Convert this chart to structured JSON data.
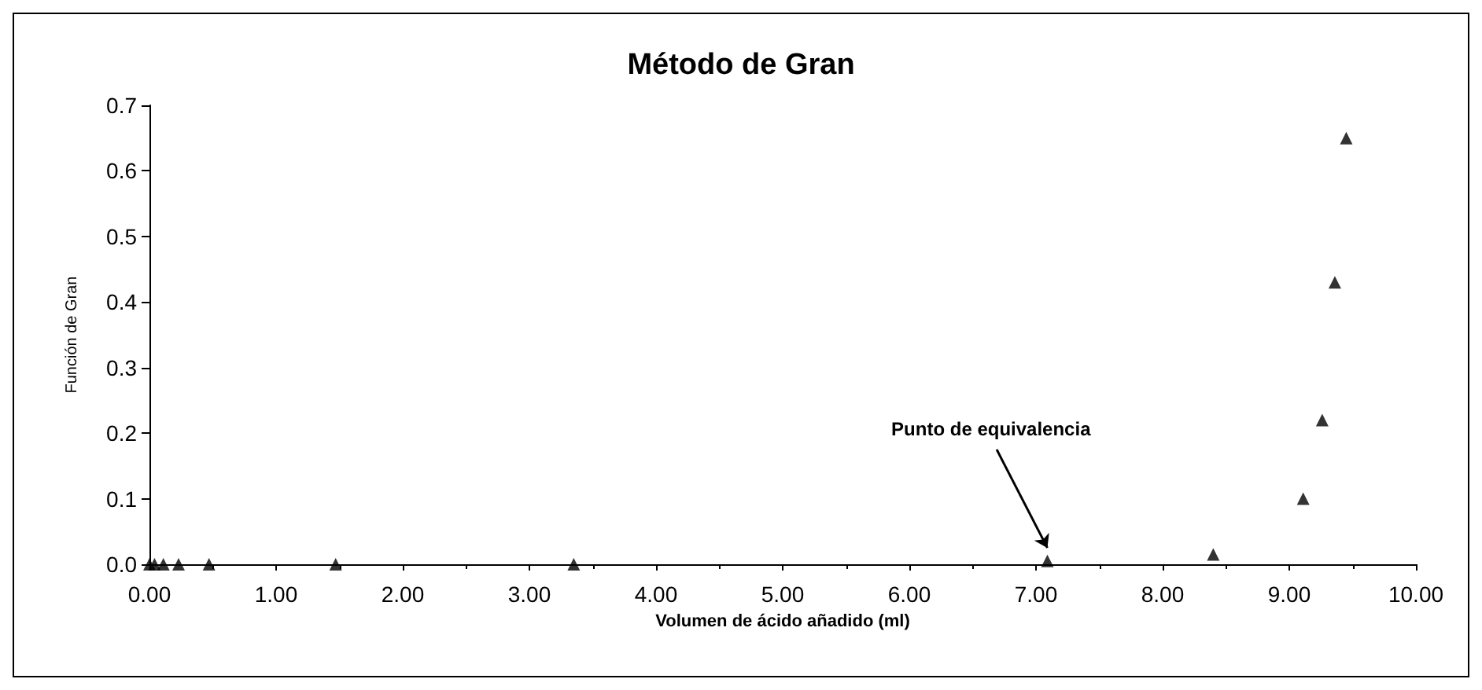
{
  "chart_data": {
    "type": "scatter",
    "title": "Método de Gran",
    "xlabel": "Volumen de ácido añadido (ml)",
    "ylabel": "Función de Gran",
    "x": [
      0.0,
      0.04,
      0.11,
      0.23,
      0.47,
      1.47,
      3.35,
      7.09,
      8.4,
      9.11,
      9.26,
      9.36,
      9.45
    ],
    "series": [
      {
        "color": "#000000",
        "values": [
          0.0,
          0.0,
          0.0,
          0.0,
          0.0,
          0.0,
          0.0,
          0.005,
          0.015,
          0.1,
          0.22,
          0.43,
          0.65
        ]
      }
    ],
    "marker": "triangle",
    "grid": false,
    "xlim": [
      0,
      10
    ],
    "xticks": [
      {
        "value": 0,
        "label": "0.00"
      },
      {
        "value": 1,
        "label": "1.00"
      },
      {
        "value": 2,
        "label": "2.00"
      },
      {
        "value": 3,
        "label": "3.00"
      },
      {
        "value": 4,
        "label": "4.00"
      },
      {
        "value": 5,
        "label": "5.00"
      },
      {
        "value": 6,
        "label": "6.00"
      },
      {
        "value": 7,
        "label": "7.00"
      },
      {
        "value": 8,
        "label": "8.00"
      },
      {
        "value": 9,
        "label": "9.00"
      },
      {
        "value": 10,
        "label": "10.00"
      }
    ],
    "ylim": [
      0,
      0.7
    ],
    "yticks": [
      {
        "value": 0,
        "label": "0.0"
      },
      {
        "value": 0.1,
        "label": "0.1"
      },
      {
        "value": 0.2,
        "label": "0.2"
      },
      {
        "value": 0.3,
        "label": "0.3"
      },
      {
        "value": 0.4,
        "label": "0.4"
      },
      {
        "value": 0.5,
        "label": "0.5"
      },
      {
        "value": 0.6,
        "label": "0.6"
      },
      {
        "value": 0.7,
        "label": "0.7"
      }
    ],
    "annotations": [
      {
        "text": "Punto de equivalencia",
        "x": 7.09,
        "y": 0.005
      }
    ]
  }
}
